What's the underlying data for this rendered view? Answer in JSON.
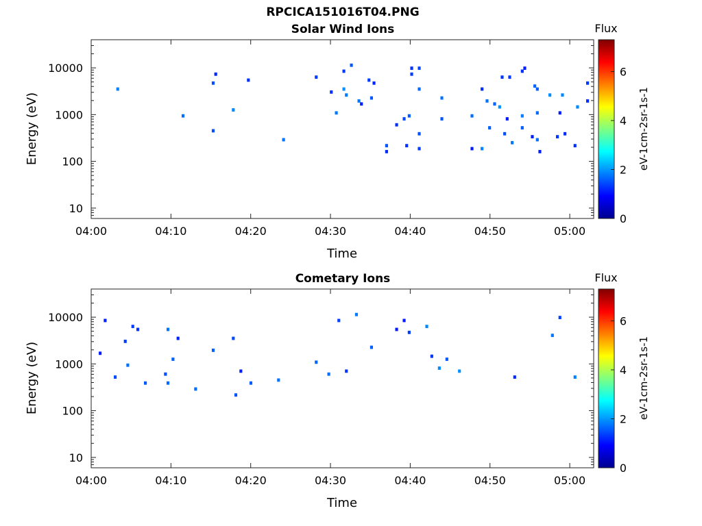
{
  "figure_title": "RPCICA151016T04.PNG",
  "chart_data": [
    {
      "type": "heatmap",
      "title": "Solar Wind Ions",
      "xlabel": "Time",
      "ylabel": "Energy (eV)",
      "x_tick_labels": [
        "04:00",
        "04:10",
        "04:20",
        "04:30",
        "04:40",
        "04:50",
        "05:00"
      ],
      "x_range": [
        "04:00",
        "05:03"
      ],
      "y_scale": "log",
      "y_tick_labels": [
        "10",
        "100",
        "1000",
        "10000"
      ],
      "y_range": [
        6,
        40000
      ],
      "colorbar": {
        "title": "Flux",
        "label": "eV-1cm-2sr-1s-1",
        "tick_labels": [
          "0",
          "2",
          "4",
          "6"
        ],
        "range": [
          0,
          7.3
        ],
        "colormap": "jet"
      },
      "grid": false
    },
    {
      "type": "heatmap",
      "title": "Cometary Ions",
      "xlabel": "Time",
      "ylabel": "Energy (eV)",
      "x_tick_labels": [
        "04:00",
        "04:10",
        "04:20",
        "04:30",
        "04:40",
        "04:50",
        "05:00"
      ],
      "x_range": [
        "04:00",
        "05:03"
      ],
      "y_scale": "log",
      "y_tick_labels": [
        "10",
        "100",
        "1000",
        "10000"
      ],
      "y_range": [
        6,
        40000
      ],
      "colorbar": {
        "title": "Flux",
        "label": "eV-1cm-2sr-1s-1",
        "tick_labels": [
          "0",
          "2",
          "4",
          "6"
        ],
        "range": [
          0,
          7.3
        ],
        "colormap": "jet"
      },
      "grid": false
    }
  ]
}
